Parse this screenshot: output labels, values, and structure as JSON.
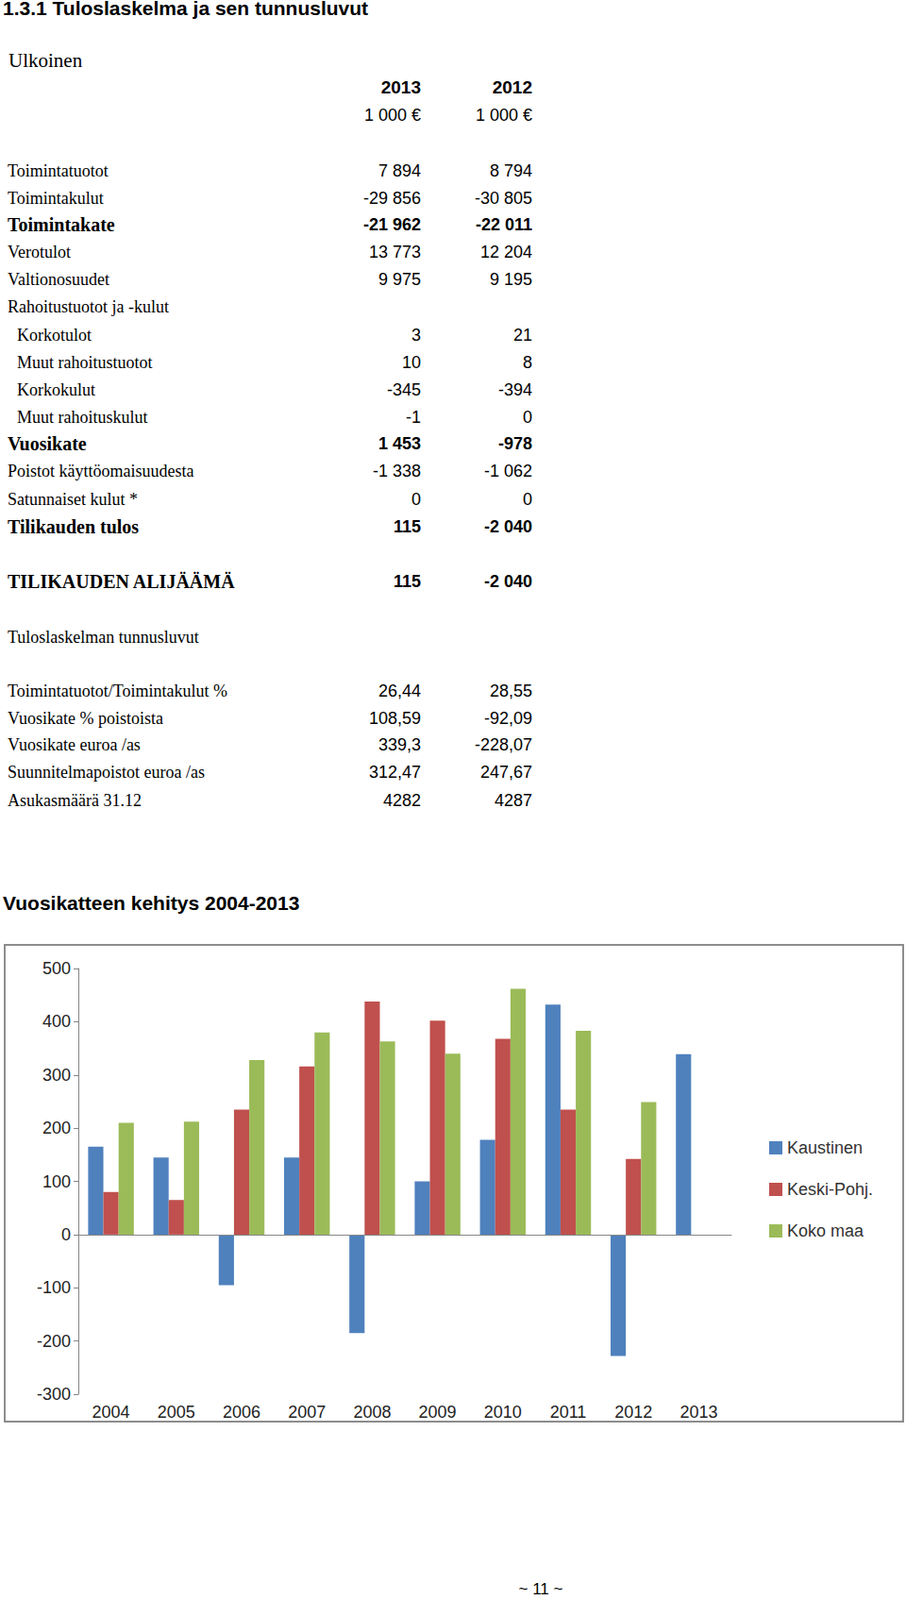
{
  "title": "1.3.1 Tuloslaskelma ja sen tunnusluvut",
  "subtitle": "Ulkoinen",
  "header_years": [
    "2013",
    "2012"
  ],
  "units": [
    "1 000 €",
    "1 000 €"
  ],
  "rows": [
    {
      "label": "Toimintatuotot",
      "values": [
        "7 894",
        "8 794"
      ]
    },
    {
      "label": "Toimintakulut",
      "values": [
        "-29 856",
        "-30 805"
      ]
    },
    {
      "label": "Toimintakate",
      "values": [
        "-21 962",
        "-22 011"
      ]
    },
    {
      "label": "Verotulot",
      "values": [
        "13 773",
        "12 204"
      ]
    },
    {
      "label": "Valtionosuudet",
      "values": [
        "9 975",
        "9 195"
      ]
    },
    {
      "label": "Rahoitustuotot ja -kulut",
      "values": []
    },
    {
      "label": "Korkotulot",
      "values": [
        "3",
        "21"
      ]
    },
    {
      "label": "Muut rahoitustuotot",
      "values": [
        "10",
        "8"
      ]
    },
    {
      "label": "Korkokulut",
      "values": [
        "-345",
        "-394"
      ]
    },
    {
      "label": "Muut rahoituskulut",
      "values": [
        "-1",
        "0"
      ]
    },
    {
      "label": "Vuosikate",
      "values": [
        "1 453",
        "-978"
      ]
    },
    {
      "label": "Poistot käyttöomaisuudesta",
      "values": [
        "-1 338",
        "-1 062"
      ]
    },
    {
      "label": "Satunnaiset kulut *",
      "values": [
        "0",
        "0"
      ]
    },
    {
      "label": "Tilikauden tulos",
      "values": [
        "115",
        "-2 040"
      ]
    }
  ],
  "result": {
    "label": "TILIKAUDEN ALIJÄÄMÄ",
    "values": [
      "115",
      "-2 040"
    ]
  },
  "key_figures": {
    "title": "Tuloslaskelman tunnusluvut",
    "rows": [
      {
        "label": "Toimintatuotot/Toimintakulut %",
        "values": [
          "26,44",
          "28,55"
        ]
      },
      {
        "label": "Vuosikate % poistoista",
        "values": [
          "108,59",
          "-92,09"
        ]
      },
      {
        "label": "Vuosikate euroa /as",
        "values": [
          "339,3",
          "-228,07"
        ]
      },
      {
        "label": "Suunnitelmapoistot euroa /as",
        "values": [
          "312,47",
          "247,67"
        ]
      },
      {
        "label": "Asukasmäärä 31.12",
        "values": [
          "4282",
          "4287"
        ]
      }
    ]
  },
  "chart_title": "Vuosikatteen kehitys 2004-2013",
  "chart_data": {
    "type": "bar",
    "categories": [
      "2004",
      "2005",
      "2006",
      "2007",
      "2008",
      "2009",
      "2010",
      "2011",
      "2012",
      "2013"
    ],
    "series": [
      {
        "name": "Kaustinen",
        "color": "#4f81bd",
        "values": [
          165,
          145,
          -95,
          145,
          -185,
          100,
          178,
          432,
          -228,
          339
        ]
      },
      {
        "name": "Keski-Pohj.",
        "color": "#c0504d",
        "values": [
          80,
          65,
          235,
          316,
          438,
          402,
          368,
          235,
          142,
          null
        ]
      },
      {
        "name": "Koko maa",
        "color": "#9bbb59",
        "values": [
          210,
          212,
          328,
          380,
          363,
          340,
          462,
          383,
          249,
          null
        ]
      }
    ],
    "ylim": [
      -300,
      500
    ],
    "yticks": [
      -300,
      -200,
      -100,
      0,
      100,
      200,
      300,
      400,
      500
    ],
    "grid": false,
    "legend": "right"
  },
  "footer": "~ 11 ~"
}
